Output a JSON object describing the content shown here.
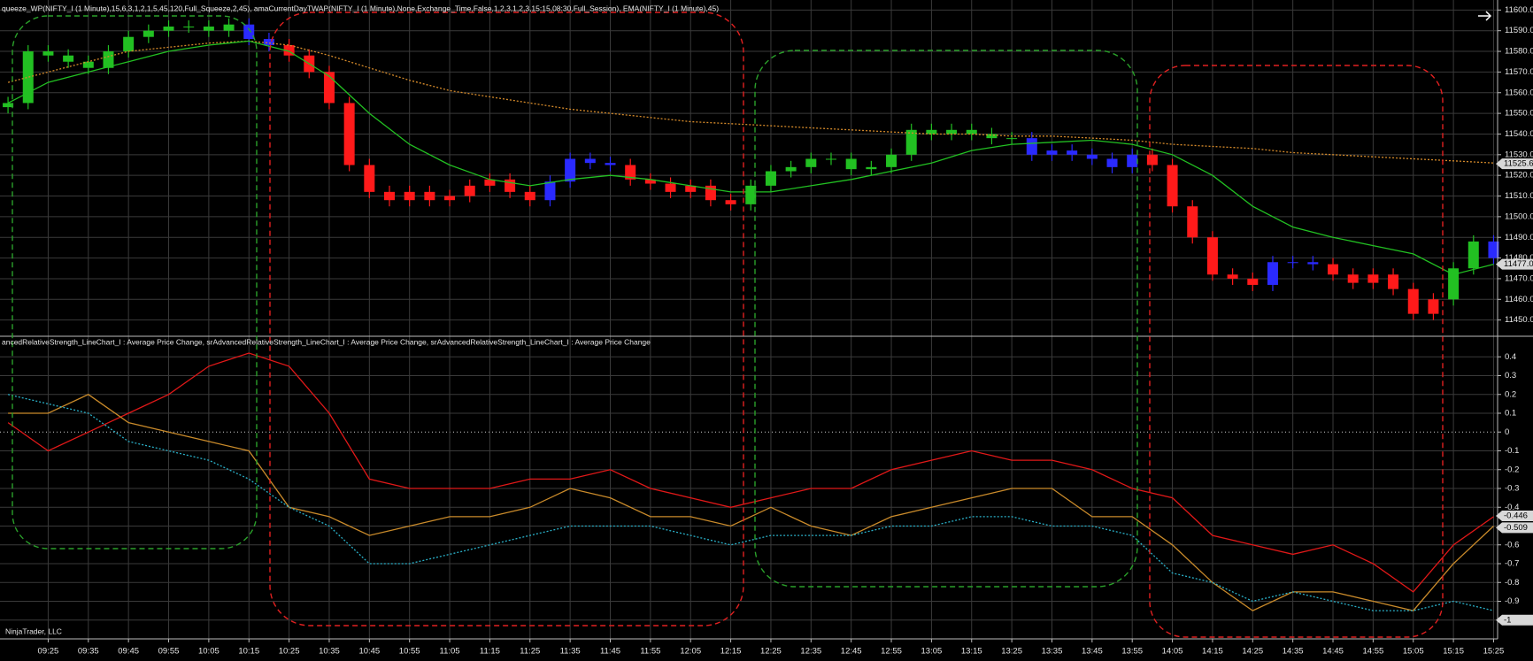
{
  "chart_data": [
    {
      "type": "candlestick",
      "title": "queeze_WP(NIFTY_I (1 Minute),15,6,3,1,2,1,5,45,120,Full_Squeeze,2,45), amaCurrentDayTWAP(NIFTY_I (1 Minute),None,Exchange_Time,False,1,2,3,1,2,3,15:15,08:30,Full_Session), EMA(NIFTY_I (1 Minute),45)",
      "xlim": [
        "09:13",
        "15:26"
      ],
      "ylim": [
        11443,
        11604
      ],
      "yticks": [
        {
          "value": 11600,
          "label": "11600.00"
        },
        {
          "value": 11590,
          "label": "11590.00"
        },
        {
          "value": 11580,
          "label": "11580.00"
        },
        {
          "value": 11570,
          "label": "11570.00"
        },
        {
          "value": 11560,
          "label": "11560.00"
        },
        {
          "value": 11550,
          "label": "11550.00"
        },
        {
          "value": 11540,
          "label": "11540.00"
        },
        {
          "value": 11530,
          "label": "11530.00"
        },
        {
          "value": 11520,
          "label": "11520.00"
        },
        {
          "value": 11510,
          "label": "11510.00"
        },
        {
          "value": 11500,
          "label": "11500.00"
        },
        {
          "value": 11490,
          "label": "11490.00"
        },
        {
          "value": 11480,
          "label": "11480.00"
        },
        {
          "value": 11470,
          "label": "11470.00"
        },
        {
          "value": 11460,
          "label": "11460.00"
        },
        {
          "value": 11450,
          "label": "11450.00"
        }
      ],
      "grid": true,
      "x": [
        "09:15",
        "09:20",
        "09:25",
        "09:30",
        "09:35",
        "09:40",
        "09:45",
        "09:50",
        "09:55",
        "10:00",
        "10:05",
        "10:10",
        "10:15",
        "10:20",
        "10:25",
        "10:30",
        "10:35",
        "10:40",
        "10:45",
        "10:50",
        "10:55",
        "11:00",
        "11:05",
        "11:10",
        "11:15",
        "11:20",
        "11:25",
        "11:30",
        "11:35",
        "11:40",
        "11:45",
        "11:50",
        "11:55",
        "12:00",
        "12:05",
        "12:10",
        "12:15",
        "12:20",
        "12:25",
        "12:30",
        "12:35",
        "12:40",
        "12:45",
        "12:50",
        "12:55",
        "13:00",
        "13:05",
        "13:10",
        "13:15",
        "13:20",
        "13:25",
        "13:30",
        "13:35",
        "13:40",
        "13:45",
        "13:50",
        "13:55",
        "14:00",
        "14:05",
        "14:10",
        "14:15",
        "14:20",
        "14:25",
        "14:30",
        "14:35",
        "14:40",
        "14:45",
        "14:50",
        "14:55",
        "15:00",
        "15:05",
        "15:10",
        "15:15",
        "15:20",
        "15:25"
      ],
      "open": [
        11553,
        11555,
        11580,
        11578,
        11575,
        11572,
        11580,
        11587,
        11590,
        11592,
        11592,
        11590,
        11593,
        11586,
        11583,
        11578,
        11570,
        11555,
        11525,
        11512,
        11508,
        11512,
        11508,
        11510,
        11515,
        11518,
        11512,
        11508,
        11517,
        11528,
        11526,
        11525,
        11518,
        11516,
        11512,
        11515,
        11508,
        11506,
        11515,
        11522,
        11524,
        11528,
        11528,
        11523,
        11524,
        11530,
        11542,
        11540,
        11542,
        11540,
        11538,
        11538,
        11530,
        11532,
        11530,
        11528,
        11524,
        11530,
        11525,
        11505,
        11490,
        11472,
        11470,
        11467,
        11478,
        11478,
        11477,
        11472,
        11468,
        11472,
        11465,
        11453,
        11460,
        11475,
        11488
      ],
      "high": [
        11558,
        11583,
        11583,
        11581,
        11578,
        11583,
        11590,
        11593,
        11595,
        11595,
        11595,
        11596,
        11596,
        11589,
        11586,
        11581,
        11573,
        11558,
        11528,
        11515,
        11515,
        11515,
        11513,
        11518,
        11521,
        11521,
        11515,
        11520,
        11531,
        11531,
        11529,
        11528,
        11521,
        11519,
        11518,
        11518,
        11511,
        11518,
        11525,
        11527,
        11531,
        11531,
        11531,
        11527,
        11533,
        11545,
        11545,
        11545,
        11545,
        11543,
        11541,
        11541,
        11535,
        11535,
        11533,
        11531,
        11533,
        11533,
        11528,
        11508,
        11493,
        11475,
        11473,
        11481,
        11481,
        11481,
        11480,
        11475,
        11475,
        11475,
        11468,
        11463,
        11478,
        11491,
        11491
      ],
      "low": [
        11550,
        11552,
        11575,
        11572,
        11569,
        11569,
        11577,
        11584,
        11587,
        11589,
        11587,
        11587,
        11583,
        11580,
        11575,
        11567,
        11552,
        11522,
        11509,
        11505,
        11505,
        11505,
        11505,
        11507,
        11512,
        11509,
        11505,
        11505,
        11514,
        11523,
        11522,
        11515,
        11513,
        11509,
        11509,
        11505,
        11503,
        11503,
        11512,
        11519,
        11521,
        11525,
        11520,
        11520,
        11521,
        11527,
        11537,
        11537,
        11537,
        11535,
        11535,
        11527,
        11527,
        11527,
        11525,
        11521,
        11521,
        11522,
        11502,
        11487,
        11469,
        11467,
        11464,
        11464,
        11475,
        11474,
        11469,
        11465,
        11465,
        11462,
        11450,
        11450,
        11457,
        11472,
        11477
      ],
      "close": [
        11555,
        11580,
        11578,
        11575,
        11572,
        11580,
        11587,
        11590,
        11592,
        11592,
        11590,
        11593,
        11586,
        11583,
        11578,
        11570,
        11555,
        11525,
        11512,
        11508,
        11512,
        11508,
        11510,
        11515,
        11518,
        11512,
        11508,
        11517,
        11528,
        11526,
        11525,
        11518,
        11516,
        11512,
        11515,
        11508,
        11506,
        11515,
        11522,
        11524,
        11528,
        11528,
        11523,
        11524,
        11530,
        11542,
        11540,
        11542,
        11540,
        11538,
        11538,
        11530,
        11532,
        11530,
        11528,
        11524,
        11530,
        11525,
        11505,
        11490,
        11472,
        11470,
        11467,
        11478,
        11478,
        11477,
        11472,
        11468,
        11472,
        11465,
        11453,
        11460,
        11475,
        11488,
        11480
      ],
      "colors": [
        "#22c022",
        "#22c022",
        "#22c022",
        "#22c022",
        "#22c022",
        "#22c022",
        "#22c022",
        "#22c022",
        "#22c022",
        "#22c022",
        "#22c022",
        "#22c022",
        "#2a2aff",
        "#2a2aff",
        "#ff1a1a",
        "#ff1a1a",
        "#ff1a1a",
        "#ff1a1a",
        "#ff1a1a",
        "#ff1a1a",
        "#ff1a1a",
        "#ff1a1a",
        "#ff1a1a",
        "#ff1a1a",
        "#ff1a1a",
        "#ff1a1a",
        "#ff1a1a",
        "#2a2aff",
        "#2a2aff",
        "#2a2aff",
        "#2a2aff",
        "#ff1a1a",
        "#ff1a1a",
        "#ff1a1a",
        "#ff1a1a",
        "#ff1a1a",
        "#ff1a1a",
        "#22c022",
        "#22c022",
        "#22c022",
        "#22c022",
        "#22c022",
        "#22c022",
        "#22c022",
        "#22c022",
        "#22c022",
        "#22c022",
        "#22c022",
        "#22c022",
        "#22c022",
        "#22c022",
        "#2a2aff",
        "#2a2aff",
        "#2a2aff",
        "#2a2aff",
        "#2a2aff",
        "#2a2aff",
        "#ff1a1a",
        "#ff1a1a",
        "#ff1a1a",
        "#ff1a1a",
        "#ff1a1a",
        "#ff1a1a",
        "#2a2aff",
        "#2a2aff",
        "#2a2aff",
        "#ff1a1a",
        "#ff1a1a",
        "#ff1a1a",
        "#ff1a1a",
        "#ff1a1a",
        "#ff1a1a",
        "#22c022",
        "#22c022",
        "#2a2aff"
      ],
      "series": [
        {
          "color": "#d58a2a",
          "dash": true,
          "x": [
            "09:15",
            "09:25",
            "09:35",
            "09:45",
            "09:55",
            "10:05",
            "10:15",
            "10:25",
            "10:35",
            "10:45",
            "10:55",
            "11:05",
            "11:15",
            "11:25",
            "11:35",
            "11:45",
            "11:55",
            "12:05",
            "12:15",
            "12:25",
            "12:35",
            "12:45",
            "12:55",
            "13:05",
            "13:15",
            "13:25",
            "13:35",
            "13:45",
            "13:55",
            "14:05",
            "14:15",
            "14:25",
            "14:35",
            "14:45",
            "14:55",
            "15:05",
            "15:15",
            "15:25"
          ],
          "values": [
            11565,
            11570,
            11575,
            11580,
            11582,
            11584,
            11585,
            11583,
            11578,
            11572,
            11566,
            11561,
            11558,
            11555,
            11552,
            11550,
            11548,
            11546,
            11545,
            11544,
            11543,
            11542,
            11541,
            11540,
            11540,
            11539,
            11539,
            11538,
            11537,
            11535,
            11534,
            11533,
            11531,
            11530,
            11529,
            11528,
            11527,
            11526
          ]
        },
        {
          "color": "#22c022",
          "dash": false,
          "x": [
            "09:15",
            "09:25",
            "09:35",
            "09:45",
            "09:55",
            "10:05",
            "10:15",
            "10:25",
            "10:35",
            "10:45",
            "10:55",
            "11:05",
            "11:15",
            "11:25",
            "11:35",
            "11:45",
            "11:55",
            "12:05",
            "12:15",
            "12:25",
            "12:35",
            "12:45",
            "12:55",
            "13:05",
            "13:15",
            "13:25",
            "13:35",
            "13:45",
            "13:55",
            "14:05",
            "14:15",
            "14:25",
            "14:35",
            "14:45",
            "14:55",
            "15:05",
            "15:15",
            "15:25"
          ],
          "values": [
            11555,
            11565,
            11570,
            11575,
            11580,
            11583,
            11585,
            11580,
            11568,
            11550,
            11535,
            11525,
            11518,
            11515,
            11518,
            11520,
            11518,
            11515,
            11512,
            11512,
            11515,
            11518,
            11522,
            11526,
            11532,
            11535,
            11536,
            11537,
            11535,
            11530,
            11520,
            11505,
            11495,
            11490,
            11486,
            11482,
            11472,
            11477
          ]
        }
      ],
      "last_labels": [
        {
          "value": 11525.6,
          "label": "11525.60"
        },
        {
          "value": 11477,
          "label": "11477.00"
        }
      ]
    },
    {
      "type": "line",
      "title": "ancedRelativeStrength_LineChart_I : Average Price Change, srAdvancedRelativeStrength_LineChart_I : Average Price Change, srAdvancedRelativeStrength_LineChart_I : Average Price Change",
      "watermark": "NinjaTrader, LLC",
      "xlim": [
        "09:13",
        "15:26"
      ],
      "ylim": [
        -1.1,
        0.5
      ],
      "yticks": [
        0.4,
        0.3,
        0.2,
        0.1,
        0,
        -0.1,
        -0.2,
        -0.3,
        -0.4,
        -0.5,
        -0.6,
        -0.7,
        -0.8,
        -0.9,
        -1
      ],
      "grid": true,
      "xticks": [
        "09:25",
        "09:35",
        "09:45",
        "09:55",
        "10:05",
        "10:15",
        "10:25",
        "10:35",
        "10:45",
        "10:55",
        "11:05",
        "11:15",
        "11:25",
        "11:35",
        "11:45",
        "11:55",
        "12:05",
        "12:15",
        "12:25",
        "12:35",
        "12:45",
        "12:55",
        "13:05",
        "13:15",
        "13:25",
        "13:35",
        "13:45",
        "13:55",
        "14:05",
        "14:15",
        "14:25",
        "14:35",
        "14:45",
        "14:55",
        "15:05",
        "15:15",
        "15:25"
      ],
      "series": [
        {
          "color": "#e01818",
          "dash": false,
          "x": [
            "09:15",
            "09:25",
            "09:35",
            "09:45",
            "09:55",
            "10:05",
            "10:15",
            "10:25",
            "10:35",
            "10:45",
            "10:55",
            "11:05",
            "11:15",
            "11:25",
            "11:35",
            "11:45",
            "11:55",
            "12:05",
            "12:15",
            "12:25",
            "12:35",
            "12:45",
            "12:55",
            "13:05",
            "13:15",
            "13:25",
            "13:35",
            "13:45",
            "13:55",
            "14:05",
            "14:15",
            "14:25",
            "14:35",
            "14:45",
            "14:55",
            "15:05",
            "15:15",
            "15:25"
          ],
          "values": [
            0.05,
            -0.1,
            0.0,
            0.1,
            0.2,
            0.35,
            0.42,
            0.35,
            0.1,
            -0.25,
            -0.3,
            -0.3,
            -0.3,
            -0.25,
            -0.25,
            -0.2,
            -0.3,
            -0.35,
            -0.4,
            -0.35,
            -0.3,
            -0.3,
            -0.2,
            -0.15,
            -0.1,
            -0.15,
            -0.15,
            -0.2,
            -0.3,
            -0.35,
            -0.55,
            -0.6,
            -0.65,
            -0.6,
            -0.7,
            -0.85,
            -0.6,
            -0.45
          ]
        },
        {
          "color": "#c98a2a",
          "dash": false,
          "x": [
            "09:15",
            "09:25",
            "09:35",
            "09:45",
            "09:55",
            "10:05",
            "10:15",
            "10:25",
            "10:35",
            "10:45",
            "10:55",
            "11:05",
            "11:15",
            "11:25",
            "11:35",
            "11:45",
            "11:55",
            "12:05",
            "12:15",
            "12:25",
            "12:35",
            "12:45",
            "12:55",
            "13:05",
            "13:15",
            "13:25",
            "13:35",
            "13:45",
            "13:55",
            "14:05",
            "14:15",
            "14:25",
            "14:35",
            "14:45",
            "14:55",
            "15:05",
            "15:15",
            "15:25"
          ],
          "values": [
            0.1,
            0.1,
            0.2,
            0.05,
            0.0,
            -0.05,
            -0.1,
            -0.4,
            -0.45,
            -0.55,
            -0.5,
            -0.45,
            -0.45,
            -0.4,
            -0.3,
            -0.35,
            -0.45,
            -0.45,
            -0.5,
            -0.4,
            -0.5,
            -0.55,
            -0.45,
            -0.4,
            -0.35,
            -0.3,
            -0.3,
            -0.45,
            -0.45,
            -0.6,
            -0.8,
            -0.95,
            -0.85,
            -0.85,
            -0.9,
            -0.95,
            -0.7,
            -0.5
          ]
        },
        {
          "color": "#2ab0c8",
          "dash": true,
          "x": [
            "09:15",
            "09:25",
            "09:35",
            "09:45",
            "09:55",
            "10:05",
            "10:15",
            "10:25",
            "10:35",
            "10:45",
            "10:55",
            "11:05",
            "11:15",
            "11:25",
            "11:35",
            "11:45",
            "11:55",
            "12:05",
            "12:15",
            "12:25",
            "12:35",
            "12:45",
            "12:55",
            "13:05",
            "13:15",
            "13:25",
            "13:35",
            "13:45",
            "13:55",
            "14:05",
            "14:15",
            "14:25",
            "14:35",
            "14:45",
            "14:55",
            "15:05",
            "15:15",
            "15:25"
          ],
          "values": [
            0.2,
            0.15,
            0.1,
            -0.05,
            -0.1,
            -0.15,
            -0.25,
            -0.4,
            -0.5,
            -0.7,
            -0.7,
            -0.65,
            -0.6,
            -0.55,
            -0.5,
            -0.5,
            -0.5,
            -0.55,
            -0.6,
            -0.55,
            -0.55,
            -0.55,
            -0.5,
            -0.5,
            -0.45,
            -0.45,
            -0.5,
            -0.5,
            -0.55,
            -0.75,
            -0.8,
            -0.9,
            -0.85,
            -0.9,
            -0.95,
            -0.95,
            -0.9,
            -0.95
          ]
        }
      ],
      "last_labels": [
        -0.446,
        -0.509,
        -1
      ]
    }
  ]
}
